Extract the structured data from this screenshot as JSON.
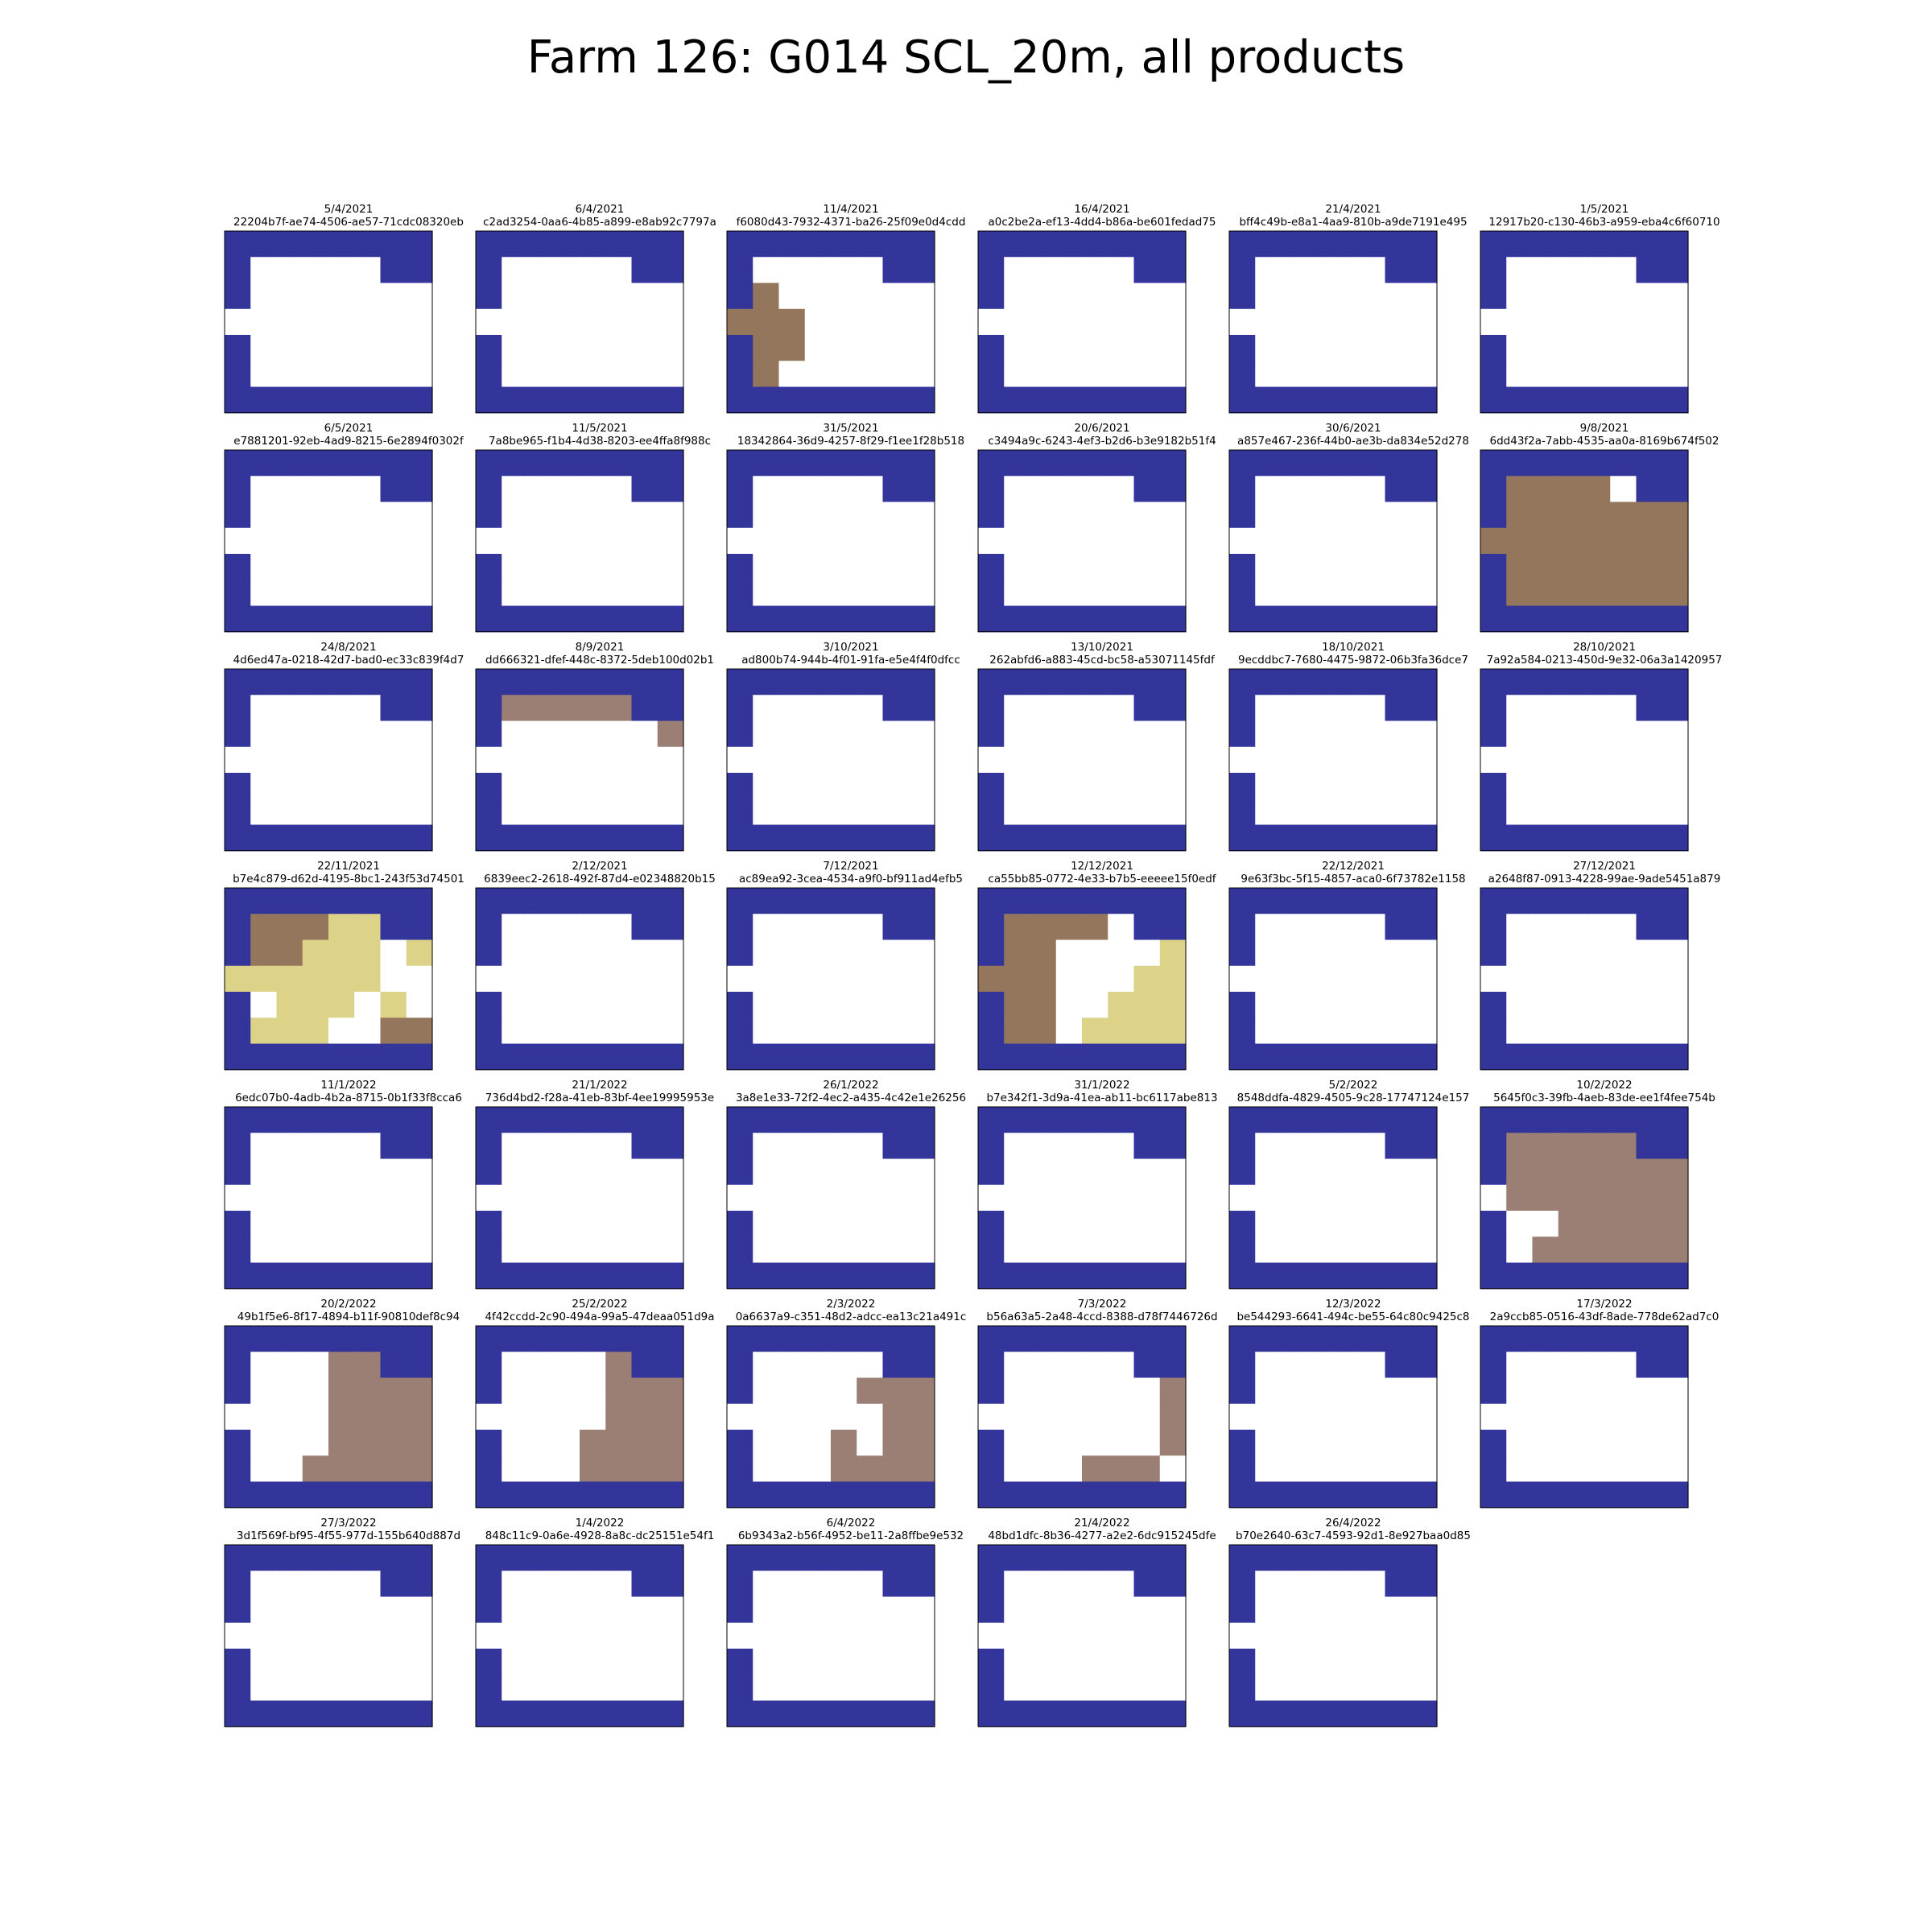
{
  "title": "Farm 126: G014 SCL_20m, all products",
  "chart_data": {
    "type": "heatmap",
    "grid": "off",
    "rows": 7,
    "cols": 8,
    "colors": {
      "N": "#34359a",
      "W": "#ffffff",
      "B": "#94765c",
      "G": "#9b7f75",
      "Y": "#dcd389"
    },
    "panels": [
      {
        "date": "5/4/2021",
        "id": "22204b7f-ae74-4506-ae57-71cdc08320eb",
        "grid": [
          "NNNNNNNN",
          "NWWWWWNN",
          "NWWWWWWW",
          "WWWWWWWW",
          "NWWWWWWW",
          "NWWWWWWW",
          "NNNNNNNN"
        ]
      },
      {
        "date": "6/4/2021",
        "id": "c2ad3254-0aa6-4b85-a899-e8ab92c7797a",
        "grid": [
          "NNNNNNNN",
          "NWWWWWNN",
          "NWWWWWWW",
          "WWWWWWWW",
          "NWWWWWWW",
          "NWWWWWWW",
          "NNNNNNNN"
        ]
      },
      {
        "date": "11/4/2021",
        "id": "f6080d43-7932-4371-ba26-25f09e0d4cdd",
        "grid": [
          "NNNNNNNN",
          "NWWWWWNN",
          "NBWWWWWW",
          "BBBWWWWW",
          "NBBWWWWW",
          "NBWWWWWW",
          "NNNNNNNN"
        ]
      },
      {
        "date": "16/4/2021",
        "id": "a0c2be2a-ef13-4dd4-b86a-be601fedad75",
        "grid": [
          "NNNNNNNN",
          "NWWWWWNN",
          "NWWWWWWW",
          "WWWWWWWW",
          "NWWWWWWW",
          "NWWWWWWW",
          "NNNNNNNN"
        ]
      },
      {
        "date": "21/4/2021",
        "id": "bff4c49b-e8a1-4aa9-810b-a9de7191e495",
        "grid": [
          "NNNNNNNN",
          "NWWWWWNN",
          "NWWWWWWW",
          "WWWWWWWW",
          "NWWWWWWW",
          "NWWWWWWW",
          "NNNNNNNN"
        ]
      },
      {
        "date": "1/5/2021",
        "id": "12917b20-c130-46b3-a959-eba4c6f60710",
        "grid": [
          "NNNNNNNN",
          "NWWWWWNN",
          "NWWWWWWW",
          "WWWWWWWW",
          "NWWWWWWW",
          "NWWWWWWW",
          "NNNNNNNN"
        ]
      },
      {
        "date": "6/5/2021",
        "id": "e7881201-92eb-4ad9-8215-6e2894f0302f",
        "grid": [
          "NNNNNNNN",
          "NWWWWWNN",
          "NWWWWWWW",
          "WWWWWWWW",
          "NWWWWWWW",
          "NWWWWWWW",
          "NNNNNNNN"
        ]
      },
      {
        "date": "11/5/2021",
        "id": "7a8be965-f1b4-4d38-8203-ee4ffa8f988c",
        "grid": [
          "NNNNNNNN",
          "NWWWWWNN",
          "NWWWWWWW",
          "WWWWWWWW",
          "NWWWWWWW",
          "NWWWWWWW",
          "NNNNNNNN"
        ]
      },
      {
        "date": "31/5/2021",
        "id": "18342864-36d9-4257-8f29-f1ee1f28b518",
        "grid": [
          "NNNNNNNN",
          "NWWWWWNN",
          "NWWWWWWW",
          "WWWWWWWW",
          "NWWWWWWW",
          "NWWWWWWW",
          "NNNNNNNN"
        ]
      },
      {
        "date": "20/6/2021",
        "id": "c3494a9c-6243-4ef3-b2d6-b3e9182b51f4",
        "grid": [
          "NNNNNNNN",
          "NWWWWWNN",
          "NWWWWWWW",
          "WWWWWWWW",
          "NWWWWWWW",
          "NWWWWWWW",
          "NNNNNNNN"
        ]
      },
      {
        "date": "30/6/2021",
        "id": "a857e467-236f-44b0-ae3b-da834e52d278",
        "grid": [
          "NNNNNNNN",
          "NWWWWWNN",
          "NWWWWWWW",
          "WWWWWWWW",
          "NWWWWWWW",
          "NWWWWWWW",
          "NNNNNNNN"
        ]
      },
      {
        "date": "9/8/2021",
        "id": "6dd43f2a-7abb-4535-aa0a-8169b674f502",
        "grid": [
          "NNNNNNNN",
          "NBBBBWNN",
          "NBBBBBBB",
          "BBBBBBBB",
          "NBBBBBBB",
          "NBBBBBBB",
          "NNNNNNNN"
        ]
      },
      {
        "date": "24/8/2021",
        "id": "4d6ed47a-0218-42d7-bad0-ec33c839f4d7",
        "grid": [
          "NNNNNNNN",
          "NWWWWWNN",
          "NWWWWWWW",
          "WWWWWWWW",
          "NWWWWWWW",
          "NWWWWWWW",
          "NNNNNNNN"
        ]
      },
      {
        "date": "8/9/2021",
        "id": "dd666321-dfef-448c-8372-5deb100d02b1",
        "grid": [
          "NNNNNNNN",
          "NGGGGGNN",
          "NWWWWWWG",
          "WWWWWWWW",
          "NWWWWWWW",
          "NWWWWWWW",
          "NNNNNNNN"
        ]
      },
      {
        "date": "3/10/2021",
        "id": "ad800b74-944b-4f01-91fa-e5e4f4f0dfcc",
        "grid": [
          "NNNNNNNN",
          "NWWWWWNN",
          "NWWWWWWW",
          "WWWWWWWW",
          "NWWWWWWW",
          "NWWWWWWW",
          "NNNNNNNN"
        ]
      },
      {
        "date": "13/10/2021",
        "id": "262abfd6-a883-45cd-bc58-a53071145fdf",
        "grid": [
          "NNNNNNNN",
          "NWWWWWNN",
          "NWWWWWWW",
          "WWWWWWWW",
          "NWWWWWWW",
          "NWWWWWWW",
          "NNNNNNNN"
        ]
      },
      {
        "date": "18/10/2021",
        "id": "9ecddbc7-7680-4475-9872-06b3fa36dce7",
        "grid": [
          "NNNNNNNN",
          "NWWWWWNN",
          "NWWWWWWW",
          "WWWWWWWW",
          "NWWWWWWW",
          "NWWWWWWW",
          "NNNNNNNN"
        ]
      },
      {
        "date": "28/10/2021",
        "id": "7a92a584-0213-450d-9e32-06a3a1420957",
        "grid": [
          "NNNNNNNN",
          "NWWWWWNN",
          "NWWWWWWW",
          "WWWWWWWW",
          "NWWWWWWW",
          "NWWWWWWW",
          "NNNNNNNN"
        ]
      },
      {
        "date": "22/11/2021",
        "id": "b7e4c879-d62d-4195-8bc1-243f53d74501",
        "grid": [
          "NNNNNNNN",
          "NBBBYYNN",
          "NBBYYYWY",
          "YYYYYYWW",
          "NWYYYWYW",
          "NYYYWWBB",
          "NNNNNNNN"
        ]
      },
      {
        "date": "2/12/2021",
        "id": "6839eec2-2618-492f-87d4-e02348820b15",
        "grid": [
          "NNNNNNNN",
          "NWWWWWNN",
          "NWWWWWWW",
          "WWWWWWWW",
          "NWWWWWWW",
          "NWWWWWWW",
          "NNNNNNNN"
        ]
      },
      {
        "date": "7/12/2021",
        "id": "ac89ea92-3cea-4534-a9f0-bf911ad4efb5",
        "grid": [
          "NNNNNNNN",
          "NWWWWWNN",
          "NWWWWWWW",
          "WWWWWWWW",
          "NWWWWWWW",
          "NWWWWWWW",
          "NNNNNNNN"
        ]
      },
      {
        "date": "12/12/2021",
        "id": "ca55bb85-0772-4e33-b7b5-eeeee15f0edf",
        "grid": [
          "NNNNNNNN",
          "NBBBBWNN",
          "NBBWWWWY",
          "BBBWWWYY",
          "NBBWWYYY",
          "NBBWYYYY",
          "NNNNNNNN"
        ]
      },
      {
        "date": "22/12/2021",
        "id": "9e63f3bc-5f15-4857-aca0-6f73782e1158",
        "grid": [
          "NNNNNNNN",
          "NWWWWWNN",
          "NWWWWWWW",
          "WWWWWWWW",
          "NWWWWWWW",
          "NWWWWWWW",
          "NNNNNNNN"
        ]
      },
      {
        "date": "27/12/2021",
        "id": "a2648f87-0913-4228-99ae-9ade5451a879",
        "grid": [
          "NNNNNNNN",
          "NWWWWWNN",
          "NWWWWWWW",
          "WWWWWWWW",
          "NWWWWWWW",
          "NWWWWWWW",
          "NNNNNNNN"
        ]
      },
      {
        "date": "11/1/2022",
        "id": "6edc07b0-4adb-4b2a-8715-0b1f33f8cca6",
        "grid": [
          "NNNNNNNN",
          "NWWWWWNN",
          "NWWWWWWW",
          "WWWWWWWW",
          "NWWWWWWW",
          "NWWWWWWW",
          "NNNNNNNN"
        ]
      },
      {
        "date": "21/1/2022",
        "id": "736d4bd2-f28a-41eb-83bf-4ee19995953e",
        "grid": [
          "NNNNNNNN",
          "NWWWWWNN",
          "NWWWWWWW",
          "WWWWWWWW",
          "NWWWWWWW",
          "NWWWWWWW",
          "NNNNNNNN"
        ]
      },
      {
        "date": "26/1/2022",
        "id": "3a8e1e33-72f2-4ec2-a435-4c42e1e26256",
        "grid": [
          "NNNNNNNN",
          "NWWWWWNN",
          "NWWWWWWW",
          "WWWWWWWW",
          "NWWWWWWW",
          "NWWWWWWW",
          "NNNNNNNN"
        ]
      },
      {
        "date": "31/1/2022",
        "id": "b7e342f1-3d9a-41ea-ab11-bc6117abe813",
        "grid": [
          "NNNNNNNN",
          "NWWWWWNN",
          "NWWWWWWW",
          "WWWWWWWW",
          "NWWWWWWW",
          "NWWWWWWW",
          "NNNNNNNN"
        ]
      },
      {
        "date": "5/2/2022",
        "id": "8548ddfa-4829-4505-9c28-17747124e157",
        "grid": [
          "NNNNNNNN",
          "NWWWWWNN",
          "NWWWWWWW",
          "WWWWWWWW",
          "NWWWWWWW",
          "NWWWWWWW",
          "NNNNNNNN"
        ]
      },
      {
        "date": "10/2/2022",
        "id": "5645f0c3-39fb-4aeb-83de-ee1f4fee754b",
        "grid": [
          "NNNNNNNN",
          "NGGGGGNN",
          "NGGGGGGG",
          "WGGGGGGG",
          "NWWGGGGG",
          "NWGGGGGG",
          "NNNNNNNN"
        ]
      },
      {
        "date": "20/2/2022",
        "id": "49b1f5e6-8f17-4894-b11f-90810def8c94",
        "grid": [
          "NNNNNNNN",
          "NWWWGGNN",
          "NWWWGGGG",
          "WWWWGGGG",
          "NWWWGGGG",
          "NWWGGGGG",
          "NNNNNNNN"
        ]
      },
      {
        "date": "25/2/2022",
        "id": "4f42ccdd-2c90-494a-99a5-47deaa051d9a",
        "grid": [
          "NNNNNNNN",
          "NWWWWGNN",
          "NWWWWGGG",
          "WWWWWGGG",
          "NWWWGGGG",
          "NWWWGGGG",
          "NNNNNNNN"
        ]
      },
      {
        "date": "2/3/2022",
        "id": "0a6637a9-c351-48d2-adcc-ea13c21a491c",
        "grid": [
          "NNNNNNNN",
          "NWWWWWNN",
          "NWWWWGGG",
          "WWWWWWGG",
          "NWWWGWGG",
          "NWWWGGGG",
          "NNNNNNNN"
        ]
      },
      {
        "date": "7/3/2022",
        "id": "b56a63a5-2a48-4ccd-8388-d78f7446726d",
        "grid": [
          "NNNNNNNN",
          "NWWWWWNN",
          "NWWWWWWG",
          "WWWWWWWG",
          "NWWWWWWG",
          "NWWWGGGW",
          "NNNNNNNN"
        ]
      },
      {
        "date": "12/3/2022",
        "id": "be544293-6641-494c-be55-64c80c9425c8",
        "grid": [
          "NNNNNNNN",
          "NWWWWWNN",
          "NWWWWWWW",
          "WWWWWWWW",
          "NWWWWWWW",
          "NWWWWWWW",
          "NNNNNNNN"
        ]
      },
      {
        "date": "17/3/2022",
        "id": "2a9ccb85-0516-43df-8ade-778de62ad7c0",
        "grid": [
          "NNNNNNNN",
          "NWWWWWNN",
          "NWWWWWWW",
          "WWWWWWWW",
          "NWWWWWWW",
          "NWWWWWWW",
          "NNNNNNNN"
        ]
      },
      {
        "date": "27/3/2022",
        "id": "3d1f569f-bf95-4f55-977d-155b640d887d",
        "grid": [
          "NNNNNNNN",
          "NWWWWWNN",
          "NWWWWWWW",
          "WWWWWWWW",
          "NWWWWWWW",
          "NWWWWWWW",
          "NNNNNNNN"
        ]
      },
      {
        "date": "1/4/2022",
        "id": "848c11c9-0a6e-4928-8a8c-dc25151e54f1",
        "grid": [
          "NNNNNNNN",
          "NWWWWWNN",
          "NWWWWWWW",
          "WWWWWWWW",
          "NWWWWWWW",
          "NWWWWWWW",
          "NNNNNNNN"
        ]
      },
      {
        "date": "6/4/2022",
        "id": "6b9343a2-b56f-4952-be11-2a8ffbe9e532",
        "grid": [
          "NNNNNNNN",
          "NWWWWWNN",
          "NWWWWWWW",
          "WWWWWWWW",
          "NWWWWWWW",
          "NWWWWWWW",
          "NNNNNNNN"
        ]
      },
      {
        "date": "21/4/2022",
        "id": "48bd1dfc-8b36-4277-a2e2-6dc915245dfe",
        "grid": [
          "NNNNNNNN",
          "NWWWWWNN",
          "NWWWWWWW",
          "WWWWWWWW",
          "NWWWWWWW",
          "NWWWWWWW",
          "NNNNNNNN"
        ]
      },
      {
        "date": "26/4/2022",
        "id": "b70e2640-63c7-4593-92d1-8e927baa0d85",
        "grid": [
          "NNNNNNNN",
          "NWWWWWNN",
          "NWWWWWWW",
          "WWWWWWWW",
          "NWWWWWWW",
          "NWWWWWWW",
          "NNNNNNNN"
        ]
      }
    ]
  }
}
